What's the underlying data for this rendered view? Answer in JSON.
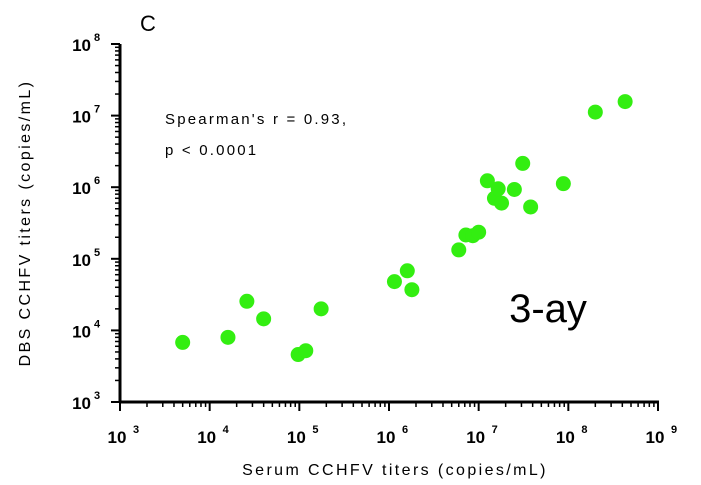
{
  "chart_data": {
    "type": "scatter",
    "panel_label": "C",
    "xlabel": "Serum CCHFV titers (copies/mL)",
    "ylabel": "DBS CCHFV titers (copies/mL)",
    "x_scale": "log10",
    "y_scale": "log10",
    "xlim": [
      1000,
      1000000000
    ],
    "ylim": [
      1000,
      100000000
    ],
    "x_ticks": [
      {
        "base": "10",
        "exp": "3",
        "value": 1000
      },
      {
        "base": "10",
        "exp": "4",
        "value": 10000
      },
      {
        "base": "10",
        "exp": "5",
        "value": 100000
      },
      {
        "base": "10",
        "exp": "6",
        "value": 1000000
      },
      {
        "base": "10",
        "exp": "7",
        "value": 10000000
      },
      {
        "base": "10",
        "exp": "8",
        "value": 100000000
      },
      {
        "base": "10",
        "exp": "9",
        "value": 1000000000
      }
    ],
    "y_ticks": [
      {
        "base": "10",
        "exp": "3",
        "value": 1000
      },
      {
        "base": "10",
        "exp": "4",
        "value": 10000
      },
      {
        "base": "10",
        "exp": "5",
        "value": 100000
      },
      {
        "base": "10",
        "exp": "6",
        "value": 1000000
      },
      {
        "base": "10",
        "exp": "7",
        "value": 10000000
      },
      {
        "base": "10",
        "exp": "8",
        "value": 100000000
      }
    ],
    "annotation": [
      "Spearman's r = 0.93,",
      "p < 0.0001"
    ],
    "overlay_label": "3-ay",
    "point_color": "#33ee11",
    "grid": false,
    "points": [
      {
        "x": 5000,
        "y": 6800
      },
      {
        "x": 16000,
        "y": 8000
      },
      {
        "x": 26000,
        "y": 25500
      },
      {
        "x": 40000,
        "y": 14500
      },
      {
        "x": 97000,
        "y": 4600
      },
      {
        "x": 118000,
        "y": 5200
      },
      {
        "x": 175000,
        "y": 20000
      },
      {
        "x": 1150000,
        "y": 48000
      },
      {
        "x": 1600000,
        "y": 68000
      },
      {
        "x": 1800000,
        "y": 37000
      },
      {
        "x": 6000000,
        "y": 133000
      },
      {
        "x": 7200000,
        "y": 215000
      },
      {
        "x": 8600000,
        "y": 210000
      },
      {
        "x": 10000000,
        "y": 235000
      },
      {
        "x": 12500000,
        "y": 1230000
      },
      {
        "x": 15000000,
        "y": 700000
      },
      {
        "x": 16500000,
        "y": 950000
      },
      {
        "x": 18000000,
        "y": 600000
      },
      {
        "x": 25000000,
        "y": 930000
      },
      {
        "x": 31000000,
        "y": 2150000
      },
      {
        "x": 38000000,
        "y": 530000
      },
      {
        "x": 88000000,
        "y": 1120000
      },
      {
        "x": 200000000,
        "y": 11200000
      },
      {
        "x": 430000000,
        "y": 15700000
      }
    ]
  }
}
